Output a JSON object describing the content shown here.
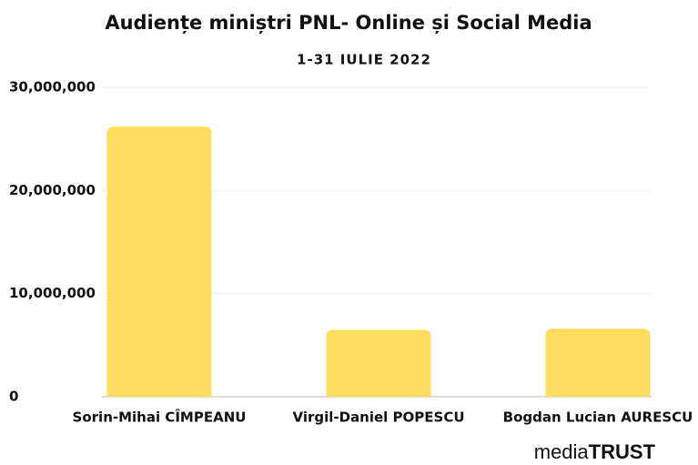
{
  "chart_data": {
    "type": "bar",
    "title": "Audiențe miniștri PNL- Online și Social Media",
    "subtitle": "1-31 IULIE 2022",
    "categories": [
      "Sorin-Mihai CÎMPEANU",
      "Virgil-Daniel POPESCU",
      "Bogdan Lucian AURESCU"
    ],
    "values": [
      26200000,
      6500000,
      6600000
    ],
    "color": "#ffdd5e",
    "ylim": [
      0,
      30000000
    ],
    "yticks": [
      0,
      {
        "value": 10000000,
        "label": "10,000,000"
      },
      {
        "value": 20000000,
        "label": "20,000,000"
      },
      {
        "value": 30000000,
        "label": "30,000,000"
      }
    ],
    "grid": true,
    "logo": [
      "media",
      "TRUST"
    ]
  }
}
